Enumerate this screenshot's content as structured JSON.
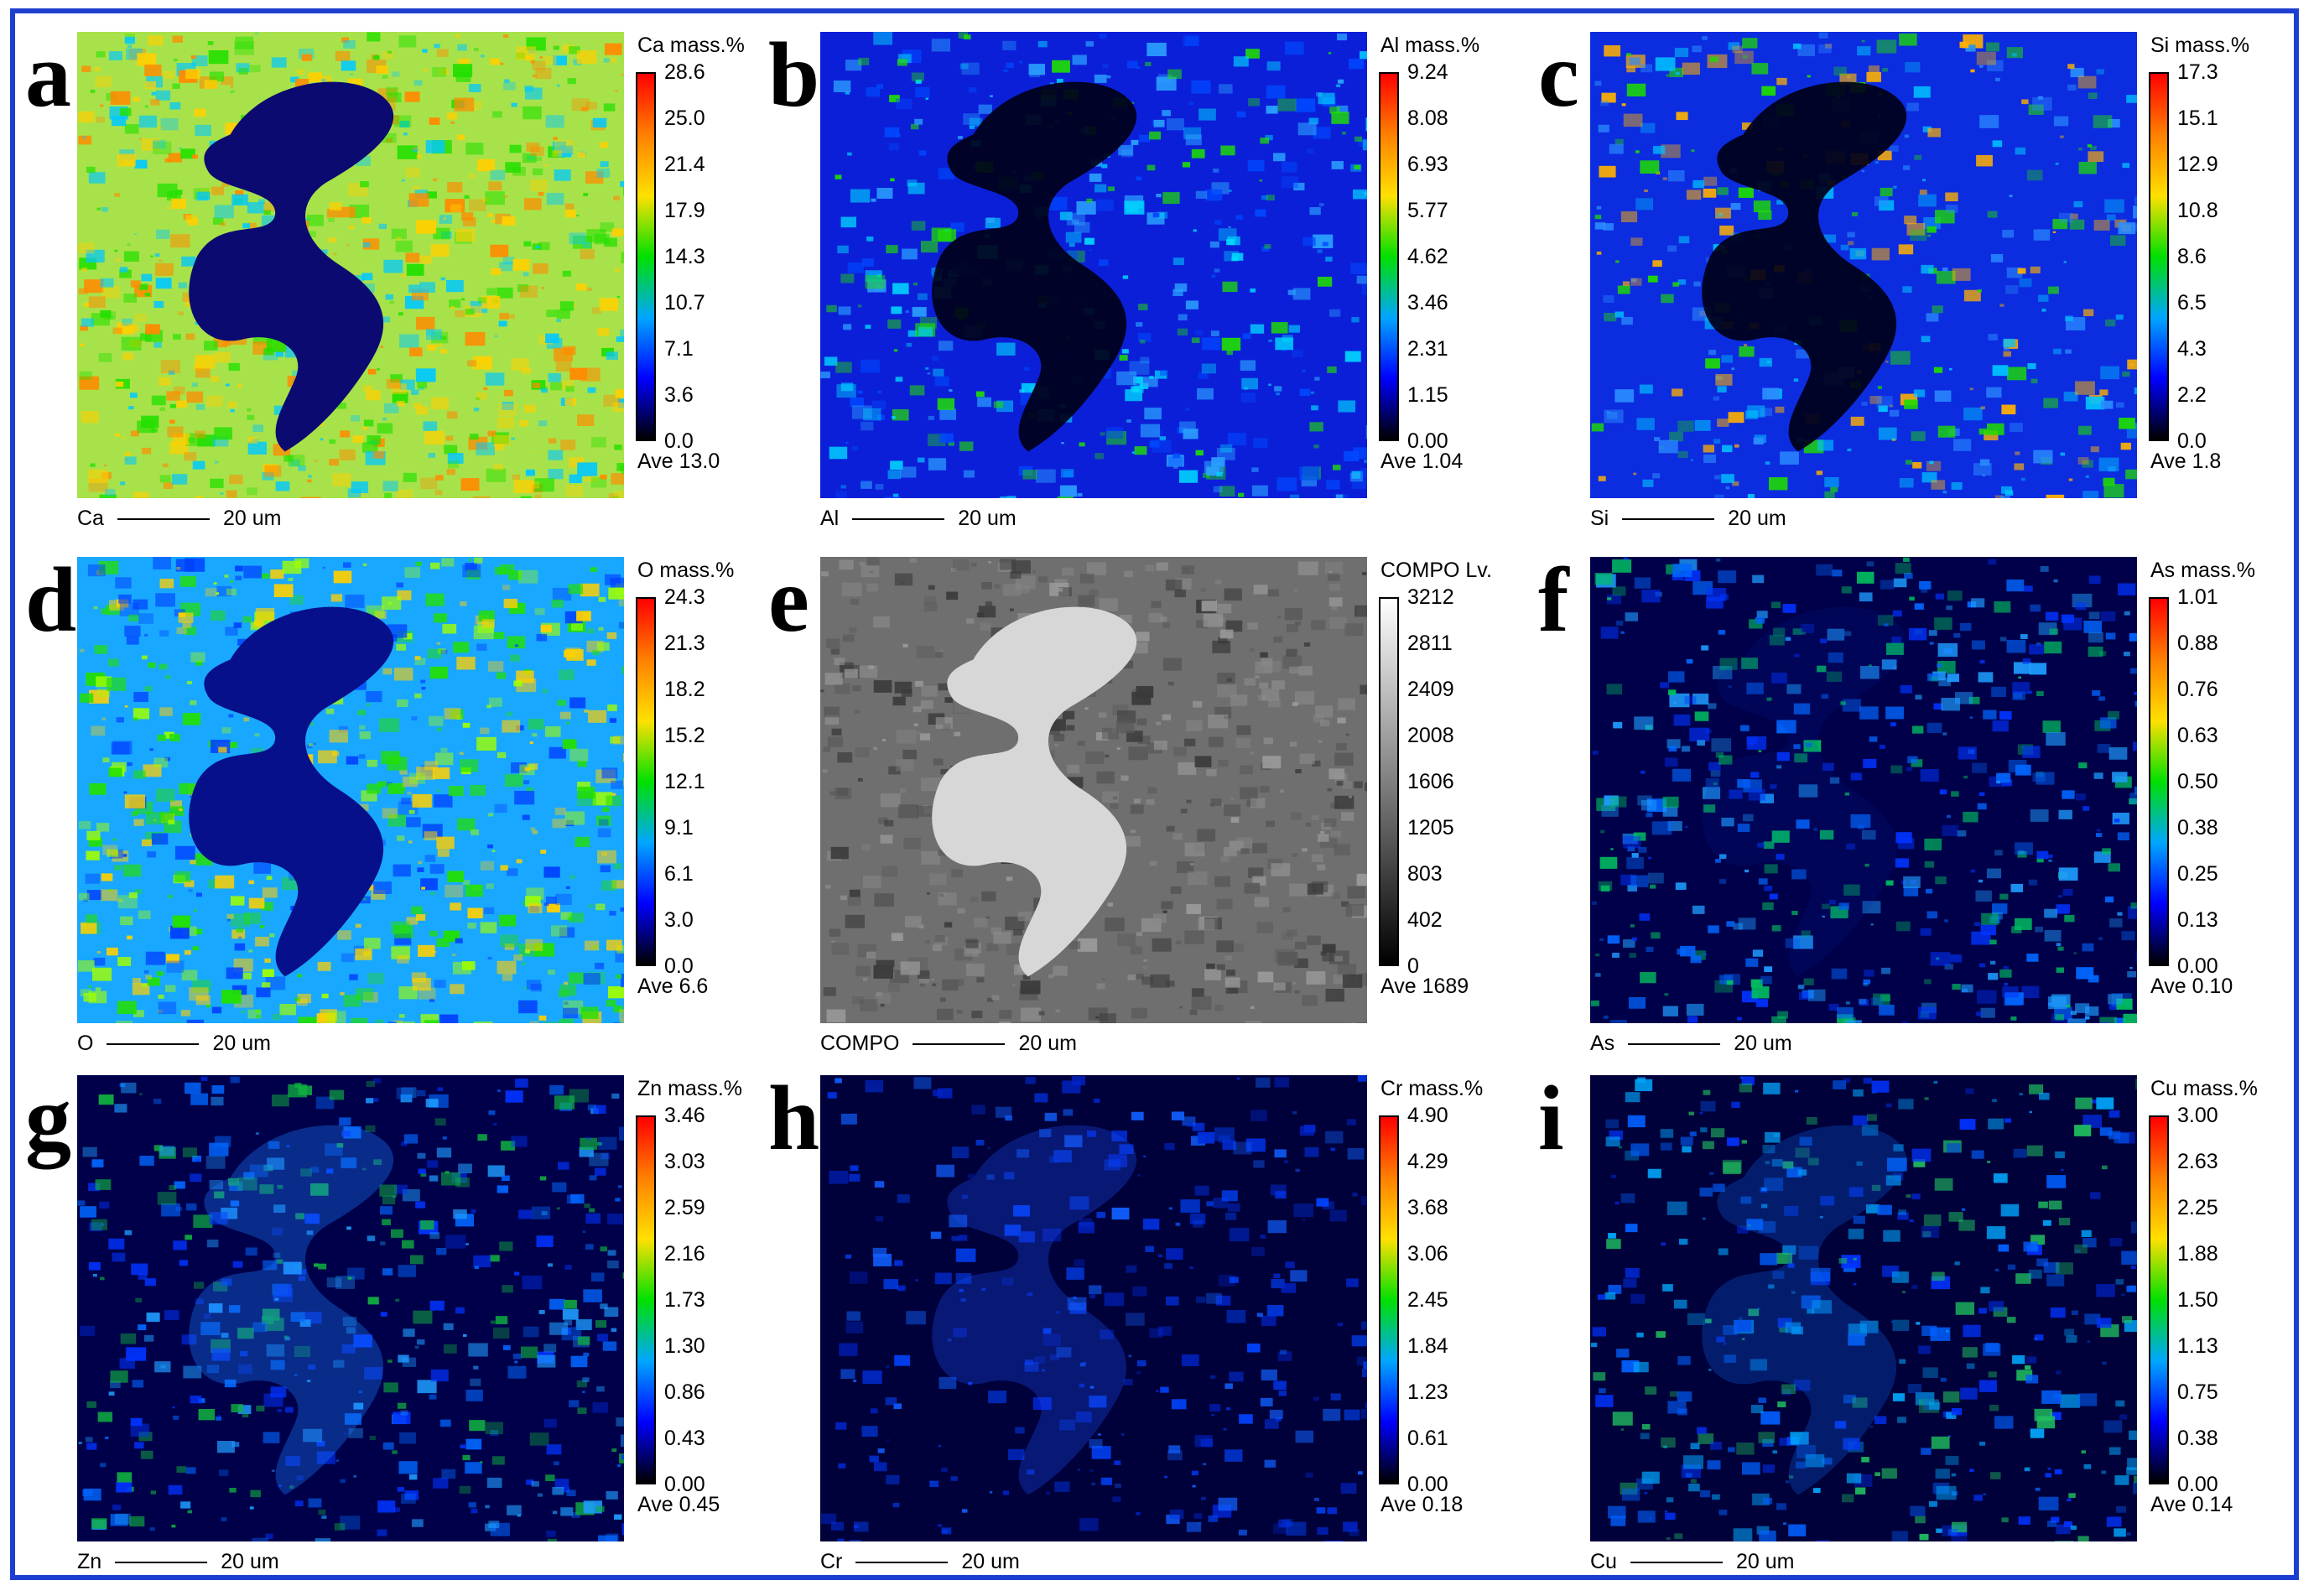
{
  "colors": {
    "frame": "#1d3fd0",
    "jet": [
      "#000000",
      "#0000ff",
      "#00a6ff",
      "#00e000",
      "#ffe000",
      "#ff8000",
      "#ff0000"
    ],
    "gray": [
      "#000000",
      "#ffffff"
    ]
  },
  "panels": [
    {
      "letter": "a",
      "element": "Ca",
      "title": "Ca  mass.%",
      "ticks": [
        "28.6",
        "25.0",
        "21.4",
        "17.9",
        "14.3",
        "10.7",
        "7.1",
        "3.6",
        "0.0"
      ],
      "ave": "Ave 13.0",
      "scale_label": "Ca",
      "scale_text": "20 um",
      "palette": "jet",
      "map_icon": "ca-mass-map"
    },
    {
      "letter": "b",
      "element": "Al",
      "title": "Al  mass.%",
      "ticks": [
        "9.24",
        "8.08",
        "6.93",
        "5.77",
        "4.62",
        "3.46",
        "2.31",
        "1.15",
        "0.00"
      ],
      "ave": "Ave 1.04",
      "scale_label": "Al",
      "scale_text": "20 um",
      "palette": "jet",
      "map_icon": "al-mass-map"
    },
    {
      "letter": "c",
      "element": "Si",
      "title": "Si  mass.%",
      "ticks": [
        "17.3",
        "15.1",
        "12.9",
        "10.8",
        "8.6",
        "6.5",
        "4.3",
        "2.2",
        "0.0"
      ],
      "ave": "Ave 1.8",
      "scale_label": "Si",
      "scale_text": "20 um",
      "palette": "jet",
      "map_icon": "si-mass-map"
    },
    {
      "letter": "d",
      "element": "O",
      "title": "O  mass.%",
      "ticks": [
        "24.3",
        "21.3",
        "18.2",
        "15.2",
        "12.1",
        "9.1",
        "6.1",
        "3.0",
        "0.0"
      ],
      "ave": "Ave 6.6",
      "scale_label": "O",
      "scale_text": "20 um",
      "palette": "jet",
      "map_icon": "o-mass-map"
    },
    {
      "letter": "e",
      "element": "COMPO",
      "title": "COMPO  Lv.",
      "ticks": [
        "3212",
        "2811",
        "2409",
        "2008",
        "1606",
        "1205",
        "803",
        "402",
        "0"
      ],
      "ave": "Ave 1689",
      "scale_label": "COMPO",
      "scale_text": "20 um",
      "palette": "gray",
      "map_icon": "compo-backscatter-image"
    },
    {
      "letter": "f",
      "element": "As",
      "title": "As  mass.%",
      "ticks": [
        "1.01",
        "0.88",
        "0.76",
        "0.63",
        "0.50",
        "0.38",
        "0.25",
        "0.13",
        "0.00"
      ],
      "ave": "Ave 0.10",
      "scale_label": "As",
      "scale_text": "20 um",
      "palette": "jet",
      "map_icon": "as-mass-map"
    },
    {
      "letter": "g",
      "element": "Zn",
      "title": "Zn  mass.%",
      "ticks": [
        "3.46",
        "3.03",
        "2.59",
        "2.16",
        "1.73",
        "1.30",
        "0.86",
        "0.43",
        "0.00"
      ],
      "ave": "Ave 0.45",
      "scale_label": "Zn",
      "scale_text": "20 um",
      "palette": "jet",
      "map_icon": "zn-mass-map"
    },
    {
      "letter": "h",
      "element": "Cr",
      "title": "Cr  mass.%",
      "ticks": [
        "4.90",
        "4.29",
        "3.68",
        "3.06",
        "2.45",
        "1.84",
        "1.23",
        "0.61",
        "0.00"
      ],
      "ave": "Ave 0.18",
      "scale_label": "Cr",
      "scale_text": "20 um",
      "palette": "jet",
      "map_icon": "cr-mass-map"
    },
    {
      "letter": "i",
      "element": "Cu",
      "title": "Cu  mass.%",
      "ticks": [
        "3.00",
        "2.63",
        "2.25",
        "1.88",
        "1.50",
        "1.13",
        "0.75",
        "0.38",
        "0.00"
      ],
      "ave": "Ave 0.14",
      "scale_label": "Cu",
      "scale_text": "20 um",
      "palette": "jet",
      "map_icon": "cu-mass-map"
    }
  ]
}
